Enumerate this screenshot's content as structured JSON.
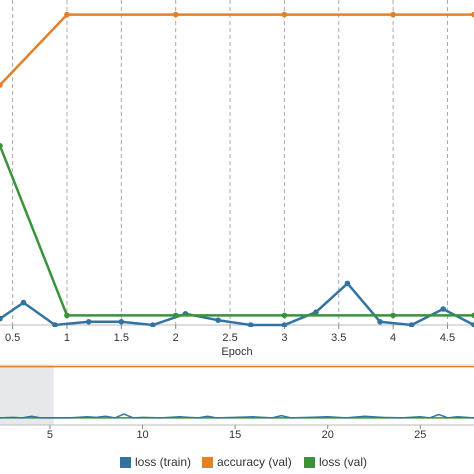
{
  "chart_data": [
    {
      "type": "line",
      "x_label": "Epoch",
      "xlim": [
        0.384,
        4.744
      ],
      "ylim": [
        0,
        1
      ],
      "xticks": [
        0.5,
        1,
        1.5,
        2,
        2.5,
        3,
        3.5,
        4,
        4.5
      ],
      "grid": true,
      "markers": true,
      "legend": "bottom",
      "series": [
        {
          "name": "loss (train)",
          "color": "#3274a1",
          "x": [
            0.384,
            0.6,
            0.89,
            1.2,
            1.5,
            1.79,
            2.09,
            2.39,
            2.69,
            3.0,
            3.29,
            3.58,
            3.88,
            4.17,
            4.46,
            4.744
          ],
          "values": [
            0.02,
            0.07,
            0.0,
            0.01,
            0.01,
            0.0,
            0.035,
            0.015,
            0.0,
            0.0,
            0.04,
            0.13,
            0.01,
            0.0,
            0.05,
            0.0
          ]
        },
        {
          "name": "accuracy (val)",
          "color": "#e1812c",
          "x": [
            0.384,
            1,
            2,
            3,
            4,
            4.744
          ],
          "values": [
            0.75,
            0.97,
            0.97,
            0.97,
            0.97,
            0.97
          ]
        },
        {
          "name": "loss (val)",
          "color": "#3a923a",
          "x": [
            0.384,
            1,
            2,
            3,
            4,
            4.744
          ],
          "values": [
            0.56,
            0.03,
            0.03,
            0.03,
            0.03,
            0.03
          ]
        }
      ]
    },
    {
      "type": "line",
      "xlim": [
        2.3,
        27.9
      ],
      "ylim": [
        -0.1,
        1
      ],
      "xticks": [
        5,
        10,
        15,
        20,
        25
      ],
      "grid": false,
      "markers": false,
      "selection": [
        2.3,
        5.2
      ],
      "series": [
        {
          "color": "#3a923a",
          "x": [
            2.3,
            27.9
          ],
          "values": [
            0.03,
            0.03
          ]
        },
        {
          "color": "#3274a1",
          "x": [
            2.3,
            3,
            3.5,
            4,
            4.5,
            5,
            6,
            6.5,
            7,
            7.5,
            8,
            8.5,
            9,
            9.5,
            10,
            11,
            12,
            12.5,
            13,
            13.5,
            14,
            15,
            16,
            17,
            17.5,
            18,
            19,
            20,
            21,
            22,
            23,
            24,
            25,
            25.5,
            26,
            26.5,
            27,
            27.9
          ],
          "values": [
            0.03,
            0.04,
            0.03,
            0.06,
            0.03,
            0.03,
            0.03,
            0.04,
            0.05,
            0.04,
            0.06,
            0.03,
            0.1,
            0.03,
            0.04,
            0.03,
            0.05,
            0.04,
            0.03,
            0.06,
            0.03,
            0.04,
            0.05,
            0.03,
            0.07,
            0.03,
            0.04,
            0.05,
            0.03,
            0.06,
            0.04,
            0.03,
            0.05,
            0.03,
            0.09,
            0.03,
            0.05,
            0.03
          ]
        },
        {
          "color": "#e1812c",
          "x": [
            2.3,
            27.9
          ],
          "values": [
            0.97,
            0.97
          ]
        }
      ]
    }
  ]
}
